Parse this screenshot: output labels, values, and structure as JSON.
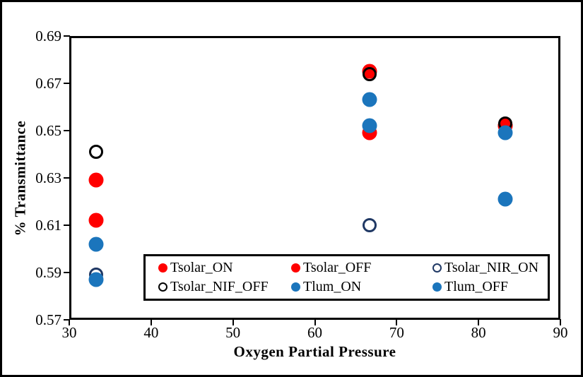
{
  "figure": {
    "background": "#ffffff",
    "frame_color": "#000000",
    "text_color": "#000000"
  },
  "chart_data": {
    "type": "scatter",
    "title": "",
    "xlabel": "Oxygen Partial Pressure",
    "ylabel": "% Transmittance",
    "xlim": [
      30,
      90
    ],
    "ylim": [
      0.57,
      0.69
    ],
    "x_ticks": [
      30,
      40,
      50,
      60,
      70,
      80,
      90
    ],
    "x_tick_labels": [
      "30",
      "40",
      "50",
      "60",
      "70",
      "80",
      "90"
    ],
    "y_ticks": [
      0.69,
      0.67,
      0.65,
      0.63,
      0.61,
      0.59,
      0.57
    ],
    "y_tick_labels": [
      "0.69",
      "0.67",
      "0.65",
      "0.63",
      "0.61",
      "0.59",
      "0.57"
    ],
    "grid": false,
    "legend_position": "inside-bottom-center",
    "series": [
      {
        "name": "Tsolar_ON",
        "marker": "filled",
        "color": "#ff0000",
        "x": [
          33.3,
          66.7,
          83.3
        ],
        "y": [
          0.612,
          0.649,
          0.652
        ]
      },
      {
        "name": "Tsolar_OFF",
        "marker": "filled",
        "color": "#ff0000",
        "x": [
          33.3,
          66.7,
          83.3
        ],
        "y": [
          0.629,
          0.675,
          0.652
        ]
      },
      {
        "name": "Tsolar_NIR_ON",
        "marker": "open",
        "color": "#1f3864",
        "x": [
          33.3,
          66.7,
          83.3
        ],
        "y": [
          0.589,
          0.61,
          0.649
        ]
      },
      {
        "name": "Tsolar_NIF_OFF",
        "marker": "open",
        "color": "#000000",
        "x": [
          33.3,
          66.7,
          83.3
        ],
        "y": [
          0.641,
          0.674,
          0.653
        ]
      },
      {
        "name": "Tlum_ON",
        "marker": "filled",
        "color": "#1b75bc",
        "x": [
          33.3,
          66.7,
          83.3
        ],
        "y": [
          0.587,
          0.652,
          0.621
        ]
      },
      {
        "name": "Tlum_OFF",
        "marker": "filled",
        "color": "#1b75bc",
        "x": [
          33.3,
          66.7,
          83.3
        ],
        "y": [
          0.602,
          0.663,
          0.649
        ]
      }
    ]
  },
  "legend": {
    "items": [
      {
        "label": "Tsolar_ON",
        "marker": "filled",
        "color": "#ff0000"
      },
      {
        "label": "Tsolar_OFF",
        "marker": "filled",
        "color": "#ff0000"
      },
      {
        "label": "Tsolar_NIR_ON",
        "marker": "open",
        "color": "#1f3864"
      },
      {
        "label": "Tsolar_NIF_OFF",
        "marker": "open",
        "color": "#000000"
      },
      {
        "label": "Tlum_ON",
        "marker": "filled",
        "color": "#1b75bc"
      },
      {
        "label": "Tlum_OFF",
        "marker": "filled",
        "color": "#1b75bc"
      }
    ]
  }
}
